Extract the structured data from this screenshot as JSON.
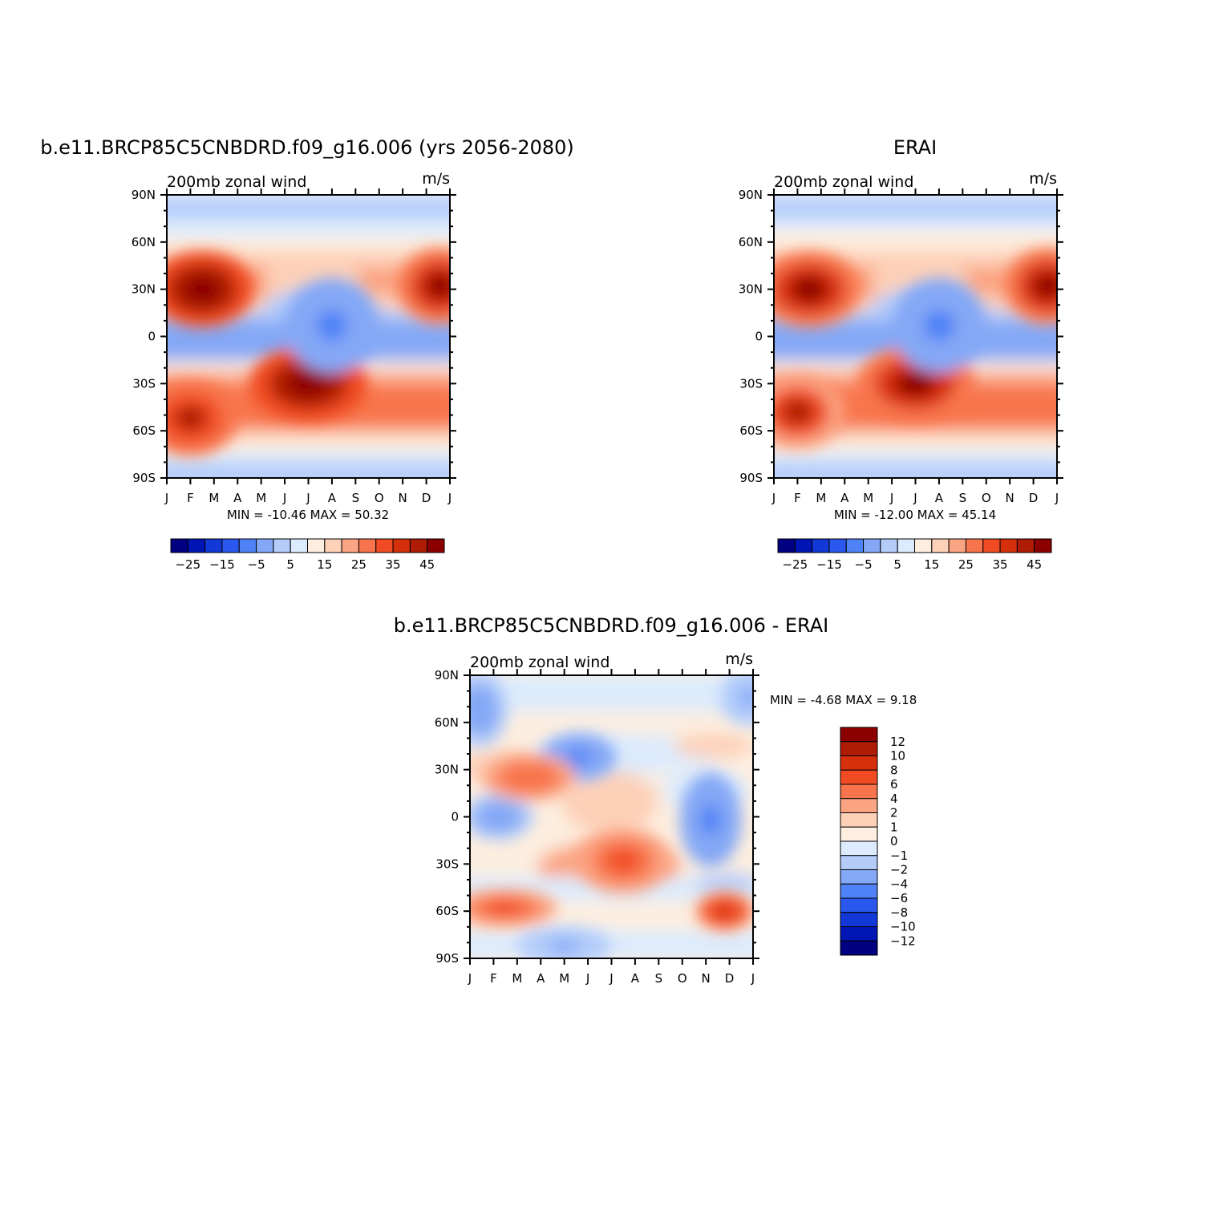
{
  "chart_data": [
    {
      "type": "heatmap",
      "id": "model",
      "title": "b.e11.BRCP85C5CNBDRD.f09_g16.006 (yrs 2056-2080)",
      "left_string": "200mb zonal wind",
      "right_string": "m/s",
      "xlabel": "",
      "ylabel": "",
      "x_ticks": [
        "J",
        "F",
        "M",
        "A",
        "M",
        "J",
        "J",
        "A",
        "S",
        "O",
        "N",
        "D",
        "J"
      ],
      "y_ticks": [
        "90N",
        "60N",
        "30N",
        "0",
        "30S",
        "60S",
        "90S"
      ],
      "ylim": [
        -90,
        90
      ],
      "min_max": "MIN =  -10.46 MAX =   50.32",
      "features": [
        {
          "lat": 30,
          "month": 1.5,
          "value": 50,
          "width_months": 2.2,
          "width_lat": 8
        },
        {
          "lat": 32,
          "month": 11.6,
          "value": 45,
          "width_months": 1.8,
          "width_lat": 8
        },
        {
          "lat": -30,
          "month": 6.0,
          "value": 50,
          "width_months": 2.5,
          "width_lat": 8
        },
        {
          "lat": -52,
          "month": 1.0,
          "value": 38,
          "width_months": 2.0,
          "width_lat": 8
        },
        {
          "lat": 7,
          "month": 7.0,
          "value": -10,
          "width_months": 2.0,
          "width_lat": 10
        }
      ],
      "colorbar": {
        "labels": [
          "-25",
          "-15",
          "-5",
          "5",
          "15",
          "25",
          "35",
          "45"
        ],
        "colors": [
          "#000080",
          "#0016b4",
          "#1238d8",
          "#2a58ee",
          "#4f82f6",
          "#84a8f6",
          "#b3ccfa",
          "#dcebfd",
          "#fdeedf",
          "#fdd0b8",
          "#fba483",
          "#f8744c",
          "#f04b22",
          "#d62f0c",
          "#af1c06",
          "#8c0000"
        ]
      }
    },
    {
      "type": "heatmap",
      "id": "obs",
      "title": "ERAI",
      "left_string": "200mb zonal wind",
      "right_string": "m/s",
      "xlabel": "",
      "ylabel": "",
      "x_ticks": [
        "J",
        "F",
        "M",
        "A",
        "M",
        "J",
        "J",
        "A",
        "S",
        "O",
        "N",
        "D",
        "J"
      ],
      "y_ticks": [
        "90N",
        "60N",
        "30N",
        "0",
        "30S",
        "60S",
        "90S"
      ],
      "ylim": [
        -90,
        90
      ],
      "min_max": "MIN =  -12.00 MAX =   45.14",
      "features": [
        {
          "lat": 30,
          "month": 1.5,
          "value": 45,
          "width_months": 2.2,
          "width_lat": 8
        },
        {
          "lat": 32,
          "month": 11.6,
          "value": 42,
          "width_months": 1.8,
          "width_lat": 8
        },
        {
          "lat": -30,
          "month": 6.0,
          "value": 44,
          "width_months": 2.5,
          "width_lat": 8
        },
        {
          "lat": -48,
          "month": 1.0,
          "value": 36,
          "width_months": 2.0,
          "width_lat": 8
        },
        {
          "lat": 7,
          "month": 7.0,
          "value": -12,
          "width_months": 2.0,
          "width_lat": 10
        }
      ],
      "colorbar": {
        "labels": [
          "-25",
          "-15",
          "-5",
          "5",
          "15",
          "25",
          "35",
          "45"
        ],
        "colors": [
          "#000080",
          "#0016b4",
          "#1238d8",
          "#2a58ee",
          "#4f82f6",
          "#84a8f6",
          "#b3ccfa",
          "#dcebfd",
          "#fdeedf",
          "#fdd0b8",
          "#fba483",
          "#f8744c",
          "#f04b22",
          "#d62f0c",
          "#af1c06",
          "#8c0000"
        ]
      }
    },
    {
      "type": "heatmap",
      "id": "diff",
      "title": "b.e11.BRCP85C5CNBDRD.f09_g16.006 - ERAI",
      "left_string": "200mb zonal wind",
      "right_string": "m/s",
      "xlabel": "",
      "ylabel": "",
      "x_ticks": [
        "J",
        "F",
        "M",
        "A",
        "M",
        "J",
        "J",
        "A",
        "S",
        "O",
        "N",
        "D",
        "J"
      ],
      "y_ticks": [
        "90N",
        "60N",
        "30N",
        "0",
        "30S",
        "60S",
        "90S"
      ],
      "ylim": [
        -90,
        90
      ],
      "min_max": "MIN =   -4.68 MAX =    9.18",
      "features": [
        {
          "lat": 38,
          "month": 4.6,
          "value": -4.5,
          "width_months": 1.6,
          "width_lat": 5
        },
        {
          "lat": 68,
          "month": 0.4,
          "value": -3,
          "width_months": 1.2,
          "width_lat": 8
        },
        {
          "lat": 76,
          "month": 11.8,
          "value": -2.5,
          "width_months": 1.2,
          "width_lat": 6
        },
        {
          "lat": -2,
          "month": 10.2,
          "value": -4.5,
          "width_months": 1.3,
          "width_lat": 10
        },
        {
          "lat": 0,
          "month": 1.2,
          "value": -3,
          "width_months": 1.5,
          "width_lat": 5
        },
        {
          "lat": 25,
          "month": 2.5,
          "value": 6,
          "width_months": 2.0,
          "width_lat": 5
        },
        {
          "lat": -28,
          "month": 6.5,
          "value": 7,
          "width_months": 2.0,
          "width_lat": 7
        },
        {
          "lat": -58,
          "month": 1.5,
          "value": 6.5,
          "width_months": 2.2,
          "width_lat": 4
        },
        {
          "lat": -60,
          "month": 10.8,
          "value": 9.2,
          "width_months": 1.2,
          "width_lat": 4
        },
        {
          "lat": -82,
          "month": 4.0,
          "value": -2,
          "width_months": 2.0,
          "width_lat": 4
        }
      ],
      "colorbar": {
        "labels": [
          "12",
          "10",
          "8",
          "6",
          "4",
          "2",
          "1",
          "0",
          "-1",
          "-2",
          "-4",
          "-6",
          "-8",
          "-10",
          "-12"
        ],
        "colors": [
          "#8c0000",
          "#af1c06",
          "#d62f0c",
          "#f04b22",
          "#f8744c",
          "#fba483",
          "#fdd0b8",
          "#fdeedf",
          "#dcebfd",
          "#b3ccfa",
          "#84a8f6",
          "#4f82f6",
          "#2a58ee",
          "#1238d8",
          "#0016b4",
          "#000080"
        ]
      }
    }
  ]
}
